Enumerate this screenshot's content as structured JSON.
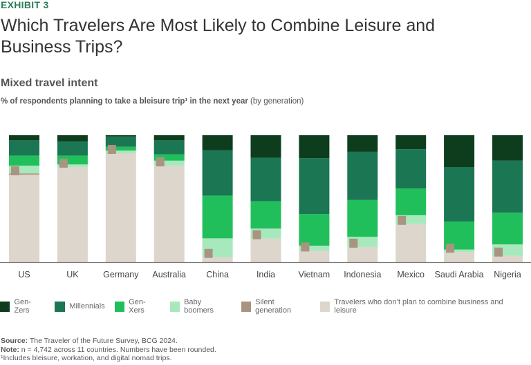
{
  "header": {
    "exhibit": "EXHIBIT 3",
    "title": "Which Travelers Are Most Likely to Combine Leisure and Business Trips?",
    "subtitle": "Mixed travel intent",
    "desc_bold": "% of respondents planning to take a bleisure trip¹ in the next year",
    "desc_normal": " (by generation)"
  },
  "chart_data": {
    "type": "bar",
    "stacked": true,
    "title": "Mixed travel intent",
    "ylabel": "% of respondents planning to take a bleisure trip in the next year (by generation)",
    "xlabel": "",
    "ylim": [
      0,
      100
    ],
    "legend_position": "bottom",
    "categories": [
      "US",
      "UK",
      "Germany",
      "Australia",
      "China",
      "India",
      "Vietnam",
      "Indonesia",
      "Mexico",
      "Saudi Arabia",
      "Nigeria"
    ],
    "series": [
      {
        "name": "Travelers who don’t plan to combine business and leisure",
        "color": "#ddd6cc",
        "label_color": "#444444",
        "values": [
          69,
          75,
          85,
          76,
          4,
          19,
          9,
          12,
          30,
          8,
          5
        ]
      },
      {
        "name": "Silent generation",
        "color": "#a89481",
        "label_color": "#ffffff",
        "values": [
          1,
          0,
          0,
          0,
          0,
          0,
          0,
          0,
          0,
          0,
          0
        ]
      },
      {
        "name": "Baby boomers",
        "color": "#a8e8bd",
        "label_color": "#444444",
        "values": [
          6,
          2,
          2,
          4,
          15,
          8,
          4,
          8,
          7,
          2,
          9
        ]
      },
      {
        "name": "Gen-Xers",
        "color": "#21bf5b",
        "label_color": "#ffffff",
        "values": [
          8,
          7,
          3,
          5,
          34,
          22,
          25,
          29,
          21,
          22,
          25
        ]
      },
      {
        "name": "Millennials",
        "color": "#1a7653",
        "label_color": "#ffffff",
        "values": [
          12,
          11,
          8,
          11,
          36,
          35,
          44,
          38,
          31,
          43,
          41
        ]
      },
      {
        "name": "Gen-Zers",
        "color": "#0e3d1e",
        "label_color": "#ffffff",
        "values": [
          4,
          5,
          1,
          4,
          12,
          18,
          18,
          13,
          11,
          25,
          20
        ]
      }
    ]
  },
  "legend": [
    {
      "label": "Gen-Zers",
      "color": "#0e3d1e"
    },
    {
      "label": "Millennials",
      "color": "#1a7653"
    },
    {
      "label": "Gen-Xers",
      "color": "#21bf5b"
    },
    {
      "label": "Baby boomers",
      "color": "#a8e8bd"
    },
    {
      "label": "Silent generation",
      "color": "#a89481"
    },
    {
      "label": "Travelers who don’t plan to combine business and leisure",
      "color": "#ddd6cc"
    }
  ],
  "notes": {
    "source_label": "Source:",
    "source_text": " The Traveler of the Future Survey, BCG 2024.",
    "note_label": "Note:",
    "note_text": " n = 4,742 across 11 countries. Numbers have been rounded.",
    "footnote": "¹Includes bleisure, workation, and digital nomad trips."
  }
}
